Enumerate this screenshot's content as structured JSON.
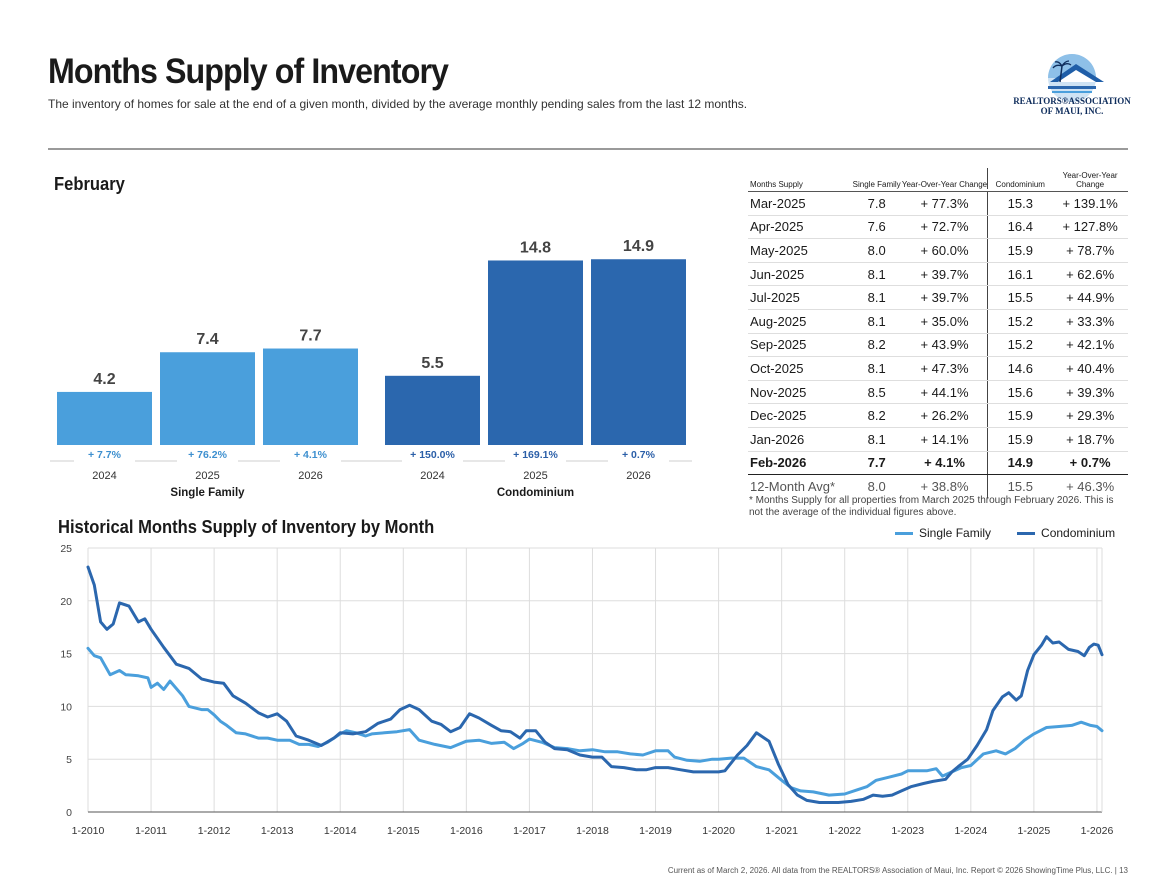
{
  "header": {
    "title": "Months Supply of Inventory",
    "subtitle": "The inventory of homes for sale at the end of a given month, divided by the average monthly pending sales from the last 12 months.",
    "logo_line1": "REALTORS®ASSOCIATION",
    "logo_line2": "OF MAUI, INC."
  },
  "month_label": "February",
  "colors": {
    "single_family": "#4a9fdc",
    "condominium": "#2b67ae",
    "axis_text": "#444",
    "grid": "#dddddd"
  },
  "chart_data": [
    {
      "type": "bar",
      "groups": [
        {
          "name": "Single Family",
          "categories": [
            "2024",
            "2025",
            "2026"
          ],
          "values": [
            4.2,
            7.4,
            7.7
          ],
          "labels": [
            "4.2",
            "7.4",
            "7.7"
          ],
          "changes": [
            "+ 7.7%",
            "+ 76.2%",
            "+ 4.1%"
          ]
        },
        {
          "name": "Condominium",
          "categories": [
            "2024",
            "2025",
            "2026"
          ],
          "values": [
            5.5,
            14.8,
            14.9
          ],
          "labels": [
            "5.5",
            "14.8",
            "14.9"
          ],
          "changes": [
            "+ 150.0%",
            "+ 169.1%",
            "+ 0.7%"
          ]
        }
      ],
      "ylim": [
        0,
        15
      ]
    },
    {
      "type": "line",
      "title": "Historical Months Supply of Inventory by Month",
      "x_labels": [
        "1-2010",
        "1-2011",
        "1-2012",
        "1-2013",
        "1-2014",
        "1-2015",
        "1-2016",
        "1-2017",
        "1-2018",
        "1-2019",
        "1-2020",
        "1-2021",
        "1-2022",
        "1-2023",
        "1-2024",
        "1-2025",
        "1-2026"
      ],
      "y_ticks": [
        "0",
        "5",
        "10",
        "15",
        "20",
        "25"
      ],
      "ylim": [
        0,
        25
      ],
      "x_start": 2010.0,
      "x_end": 2026.08,
      "series": [
        {
          "name": "Single Family",
          "points": [
            [
              2010.0,
              15.5
            ],
            [
              2010.1,
              14.8
            ],
            [
              2010.2,
              14.6
            ],
            [
              2010.35,
              13.0
            ],
            [
              2010.5,
              13.4
            ],
            [
              2010.6,
              13.0
            ],
            [
              2010.8,
              12.9
            ],
            [
              2010.95,
              12.7
            ],
            [
              2011.0,
              11.8
            ],
            [
              2011.1,
              12.2
            ],
            [
              2011.2,
              11.6
            ],
            [
              2011.3,
              12.4
            ],
            [
              2011.5,
              11.0
            ],
            [
              2011.6,
              10.0
            ],
            [
              2011.8,
              9.7
            ],
            [
              2011.9,
              9.7
            ],
            [
              2012.0,
              9.2
            ],
            [
              2012.1,
              8.6
            ],
            [
              2012.2,
              8.2
            ],
            [
              2012.35,
              7.5
            ],
            [
              2012.5,
              7.4
            ],
            [
              2012.7,
              7.0
            ],
            [
              2012.85,
              7.0
            ],
            [
              2013.0,
              6.8
            ],
            [
              2013.2,
              6.8
            ],
            [
              2013.35,
              6.4
            ],
            [
              2013.5,
              6.4
            ],
            [
              2013.65,
              6.2
            ],
            [
              2013.8,
              6.6
            ],
            [
              2014.0,
              7.4
            ],
            [
              2014.1,
              7.7
            ],
            [
              2014.25,
              7.5
            ],
            [
              2014.4,
              7.2
            ],
            [
              2014.5,
              7.4
            ],
            [
              2014.7,
              7.5
            ],
            [
              2014.9,
              7.6
            ],
            [
              2015.1,
              7.8
            ],
            [
              2015.25,
              6.8
            ],
            [
              2015.5,
              6.4
            ],
            [
              2015.75,
              6.1
            ],
            [
              2016.0,
              6.7
            ],
            [
              2016.2,
              6.8
            ],
            [
              2016.4,
              6.5
            ],
            [
              2016.6,
              6.6
            ],
            [
              2016.75,
              6.0
            ],
            [
              2016.9,
              6.5
            ],
            [
              2017.0,
              6.9
            ],
            [
              2017.2,
              6.6
            ],
            [
              2017.4,
              6.1
            ],
            [
              2017.6,
              6.0
            ],
            [
              2017.8,
              5.8
            ],
            [
              2018.0,
              5.9
            ],
            [
              2018.2,
              5.7
            ],
            [
              2018.4,
              5.7
            ],
            [
              2018.6,
              5.5
            ],
            [
              2018.8,
              5.4
            ],
            [
              2019.0,
              5.8
            ],
            [
              2019.2,
              5.8
            ],
            [
              2019.3,
              5.2
            ],
            [
              2019.5,
              4.9
            ],
            [
              2019.7,
              4.8
            ],
            [
              2019.9,
              5.0
            ],
            [
              2020.0,
              5.0
            ],
            [
              2020.2,
              5.1
            ],
            [
              2020.4,
              5.1
            ],
            [
              2020.6,
              4.3
            ],
            [
              2020.8,
              4.0
            ],
            [
              2021.0,
              3.0
            ],
            [
              2021.15,
              2.3
            ],
            [
              2021.3,
              2.0
            ],
            [
              2021.5,
              1.9
            ],
            [
              2021.75,
              1.6
            ],
            [
              2022.0,
              1.7
            ],
            [
              2022.2,
              2.1
            ],
            [
              2022.35,
              2.4
            ],
            [
              2022.5,
              3.0
            ],
            [
              2022.7,
              3.3
            ],
            [
              2022.9,
              3.6
            ],
            [
              2023.0,
              3.9
            ],
            [
              2023.3,
              3.9
            ],
            [
              2023.45,
              4.1
            ],
            [
              2023.55,
              3.4
            ],
            [
              2023.7,
              3.8
            ],
            [
              2023.85,
              4.2
            ],
            [
              2024.0,
              4.4
            ],
            [
              2024.2,
              5.5
            ],
            [
              2024.4,
              5.8
            ],
            [
              2024.55,
              5.5
            ],
            [
              2024.7,
              6.0
            ],
            [
              2024.85,
              6.8
            ],
            [
              2025.0,
              7.4
            ],
            [
              2025.2,
              8.0
            ],
            [
              2025.4,
              8.1
            ],
            [
              2025.6,
              8.2
            ],
            [
              2025.75,
              8.5
            ],
            [
              2025.9,
              8.2
            ],
            [
              2026.0,
              8.1
            ],
            [
              2026.08,
              7.7
            ]
          ]
        },
        {
          "name": "Condominium",
          "points": [
            [
              2010.0,
              23.2
            ],
            [
              2010.1,
              21.5
            ],
            [
              2010.2,
              18.0
            ],
            [
              2010.3,
              17.3
            ],
            [
              2010.4,
              17.8
            ],
            [
              2010.5,
              19.8
            ],
            [
              2010.65,
              19.5
            ],
            [
              2010.8,
              18.0
            ],
            [
              2010.9,
              18.3
            ],
            [
              2011.0,
              17.3
            ],
            [
              2011.2,
              15.6
            ],
            [
              2011.4,
              14.0
            ],
            [
              2011.6,
              13.6
            ],
            [
              2011.8,
              12.6
            ],
            [
              2012.0,
              12.3
            ],
            [
              2012.15,
              12.2
            ],
            [
              2012.3,
              11.0
            ],
            [
              2012.5,
              10.3
            ],
            [
              2012.7,
              9.4
            ],
            [
              2012.85,
              9.0
            ],
            [
              2013.0,
              9.3
            ],
            [
              2013.15,
              8.6
            ],
            [
              2013.3,
              7.2
            ],
            [
              2013.5,
              6.8
            ],
            [
              2013.7,
              6.3
            ],
            [
              2013.9,
              7.0
            ],
            [
              2014.0,
              7.5
            ],
            [
              2014.2,
              7.4
            ],
            [
              2014.4,
              7.6
            ],
            [
              2014.6,
              8.4
            ],
            [
              2014.8,
              8.8
            ],
            [
              2014.95,
              9.7
            ],
            [
              2015.1,
              10.1
            ],
            [
              2015.25,
              9.7
            ],
            [
              2015.45,
              8.6
            ],
            [
              2015.6,
              8.3
            ],
            [
              2015.75,
              7.6
            ],
            [
              2015.9,
              8.0
            ],
            [
              2016.05,
              9.3
            ],
            [
              2016.2,
              8.9
            ],
            [
              2016.4,
              8.2
            ],
            [
              2016.55,
              7.7
            ],
            [
              2016.7,
              7.6
            ],
            [
              2016.85,
              7.0
            ],
            [
              2016.95,
              7.7
            ],
            [
              2017.1,
              7.7
            ],
            [
              2017.25,
              6.6
            ],
            [
              2017.4,
              6.0
            ],
            [
              2017.6,
              5.9
            ],
            [
              2017.8,
              5.4
            ],
            [
              2018.0,
              5.2
            ],
            [
              2018.15,
              5.2
            ],
            [
              2018.3,
              4.3
            ],
            [
              2018.5,
              4.2
            ],
            [
              2018.7,
              4.0
            ],
            [
              2018.85,
              4.0
            ],
            [
              2019.0,
              4.2
            ],
            [
              2019.2,
              4.2
            ],
            [
              2019.4,
              4.0
            ],
            [
              2019.6,
              3.8
            ],
            [
              2019.8,
              3.8
            ],
            [
              2020.0,
              3.8
            ],
            [
              2020.1,
              3.9
            ],
            [
              2020.3,
              5.4
            ],
            [
              2020.45,
              6.3
            ],
            [
              2020.6,
              7.5
            ],
            [
              2020.8,
              6.7
            ],
            [
              2020.95,
              4.5
            ],
            [
              2021.1,
              2.6
            ],
            [
              2021.25,
              1.6
            ],
            [
              2021.4,
              1.1
            ],
            [
              2021.6,
              0.9
            ],
            [
              2021.9,
              0.9
            ],
            [
              2022.1,
              1.0
            ],
            [
              2022.3,
              1.2
            ],
            [
              2022.45,
              1.6
            ],
            [
              2022.6,
              1.5
            ],
            [
              2022.75,
              1.6
            ],
            [
              2022.9,
              2.0
            ],
            [
              2023.05,
              2.4
            ],
            [
              2023.25,
              2.7
            ],
            [
              2023.4,
              2.9
            ],
            [
              2023.6,
              3.1
            ],
            [
              2023.7,
              3.8
            ],
            [
              2023.8,
              4.3
            ],
            [
              2023.95,
              5.0
            ],
            [
              2024.1,
              6.3
            ],
            [
              2024.25,
              7.8
            ],
            [
              2024.35,
              9.6
            ],
            [
              2024.5,
              10.9
            ],
            [
              2024.6,
              11.3
            ],
            [
              2024.72,
              10.6
            ],
            [
              2024.8,
              11.0
            ],
            [
              2024.9,
              13.4
            ],
            [
              2025.0,
              14.9
            ],
            [
              2025.12,
              15.8
            ],
            [
              2025.2,
              16.6
            ],
            [
              2025.3,
              16.0
            ],
            [
              2025.4,
              16.1
            ],
            [
              2025.55,
              15.4
            ],
            [
              2025.7,
              15.2
            ],
            [
              2025.8,
              14.8
            ],
            [
              2025.88,
              15.6
            ],
            [
              2025.95,
              15.9
            ],
            [
              2026.02,
              15.8
            ],
            [
              2026.08,
              14.9
            ]
          ]
        }
      ]
    }
  ],
  "table": {
    "headers": [
      "Months Supply",
      "Single Family",
      "Year-Over-Year Change",
      "Condominium",
      "Year-Over-Year Change"
    ],
    "rows": [
      [
        "Mar-2025",
        "7.8",
        "+ 77.3%",
        "15.3",
        "+ 139.1%"
      ],
      [
        "Apr-2025",
        "7.6",
        "+ 72.7%",
        "16.4",
        "+ 127.8%"
      ],
      [
        "May-2025",
        "8.0",
        "+ 60.0%",
        "15.9",
        "+ 78.7%"
      ],
      [
        "Jun-2025",
        "8.1",
        "+ 39.7%",
        "16.1",
        "+ 62.6%"
      ],
      [
        "Jul-2025",
        "8.1",
        "+ 39.7%",
        "15.5",
        "+ 44.9%"
      ],
      [
        "Aug-2025",
        "8.1",
        "+ 35.0%",
        "15.2",
        "+ 33.3%"
      ],
      [
        "Sep-2025",
        "8.2",
        "+ 43.9%",
        "15.2",
        "+ 42.1%"
      ],
      [
        "Oct-2025",
        "8.1",
        "+ 47.3%",
        "14.6",
        "+ 40.4%"
      ],
      [
        "Nov-2025",
        "8.5",
        "+ 44.1%",
        "15.6",
        "+ 39.3%"
      ],
      [
        "Dec-2025",
        "8.2",
        "+ 26.2%",
        "15.9",
        "+ 29.3%"
      ],
      [
        "Jan-2026",
        "8.1",
        "+ 14.1%",
        "15.9",
        "+ 18.7%"
      ],
      [
        "Feb-2026",
        "7.7",
        "+ 4.1%",
        "14.9",
        "+ 0.7%"
      ],
      [
        "12-Month Avg*",
        "8.0",
        "+ 38.8%",
        "15.5",
        "+ 46.3%"
      ]
    ]
  },
  "footnote": "* Months Supply for all properties from March 2025 through February 2026. This is not the average of the individual figures above.",
  "legend": {
    "single_family": "Single Family",
    "condominium": "Condominium"
  },
  "footer": "Current as of March 2, 2026. All data from the REALTORS® Association of Maui, Inc. Report © 2026 ShowingTime Plus, LLC.  |  13"
}
